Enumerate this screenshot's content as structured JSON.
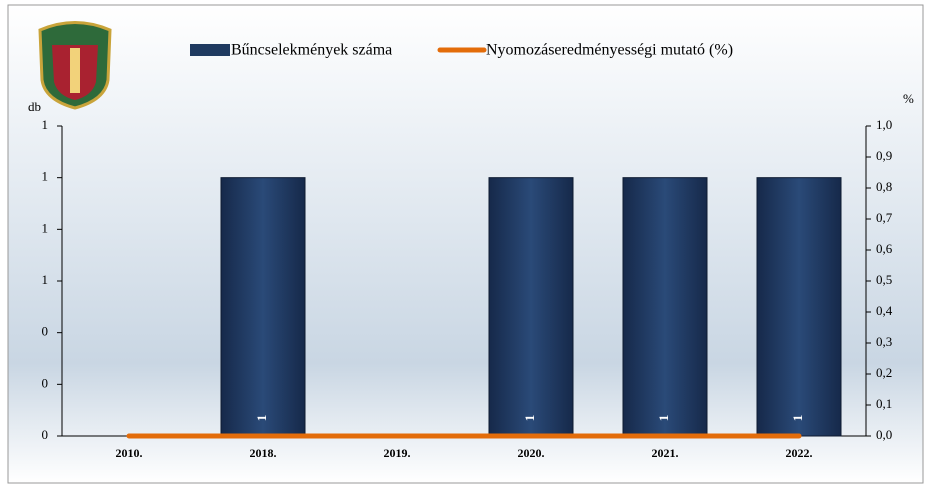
{
  "chart_data": {
    "type": "bar",
    "categories": [
      "2010.",
      "2018.",
      "2019.",
      "2020.",
      "2021.",
      "2022."
    ],
    "series": [
      {
        "name": "Bűncselekmények száma",
        "color": "#1f3a60",
        "values": [
          null,
          1,
          null,
          1,
          1,
          1
        ]
      },
      {
        "name": "Nyomozáseredményességi mutató (%)",
        "color": "#e36c0a",
        "type": "line",
        "axis": "y2",
        "values": [
          0,
          0,
          0,
          0,
          0,
          0
        ]
      }
    ],
    "y_label": "db",
    "y2_label": "%",
    "ylim": [
      0,
      1.2
    ],
    "yticks": [
      0,
      {
        "value": 0.2,
        "label": "0"
      },
      {
        "value": 0.4,
        "label": "0"
      },
      {
        "value": 0.6,
        "label": "1"
      },
      {
        "value": 0.8,
        "label": "1"
      },
      {
        "value": 1.0,
        "label": "1"
      },
      {
        "value": 1.2,
        "label": "1"
      }
    ],
    "y2lim": [
      0,
      1
    ],
    "y2ticks": [
      {
        "value": 0,
        "label": "0,0"
      },
      {
        "value": 0.1,
        "label": "0,1"
      },
      {
        "value": 0.2,
        "label": "0,2"
      },
      {
        "value": 0.3,
        "label": "0,3"
      },
      {
        "value": 0.4,
        "label": "0,4"
      },
      {
        "value": 0.5,
        "label": "0,5"
      },
      {
        "value": 0.6,
        "label": "0,6"
      },
      {
        "value": 0.7,
        "label": "0,7"
      },
      {
        "value": 0.8,
        "label": "0,8"
      },
      {
        "value": 0.9,
        "label": "0,9"
      },
      {
        "value": 1,
        "label": "1,0"
      }
    ],
    "grid": false,
    "legend": "top"
  }
}
